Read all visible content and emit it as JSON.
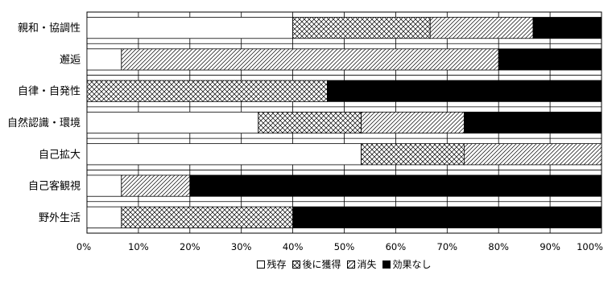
{
  "chart_data": {
    "type": "bar",
    "orientation": "horizontal",
    "stacked": true,
    "title": "",
    "xlabel": "",
    "ylabel": "",
    "xlim": [
      0,
      100
    ],
    "x_ticks": [
      "0%",
      "10%",
      "20%",
      "30%",
      "40%",
      "50%",
      "60%",
      "70%",
      "80%",
      "90%",
      "100%"
    ],
    "grid": true,
    "legend_position": "bottom",
    "categories": [
      "親和・協調性",
      "邂逅",
      "自律・自発性",
      "自然認識・環境",
      "自己拡大",
      "自己客観視",
      "野外生活"
    ],
    "series": [
      {
        "name": "残存",
        "pattern": "none",
        "color": "#ffffff",
        "values": [
          40,
          6.7,
          0,
          33.3,
          53.3,
          6.7,
          6.7
        ]
      },
      {
        "name": "後に獲得",
        "pattern": "crosshatch",
        "color": "#ffffff",
        "values": [
          26.7,
          0,
          46.7,
          20,
          20,
          0,
          33.3
        ]
      },
      {
        "name": "消失",
        "pattern": "diagonal",
        "color": "#ffffff",
        "values": [
          20,
          73.3,
          0,
          20,
          26.7,
          13.3,
          0
        ]
      },
      {
        "name": "効果なし",
        "pattern": "solid",
        "color": "#000000",
        "values": [
          13.3,
          20,
          53.3,
          26.7,
          0,
          80,
          60
        ]
      }
    ]
  }
}
